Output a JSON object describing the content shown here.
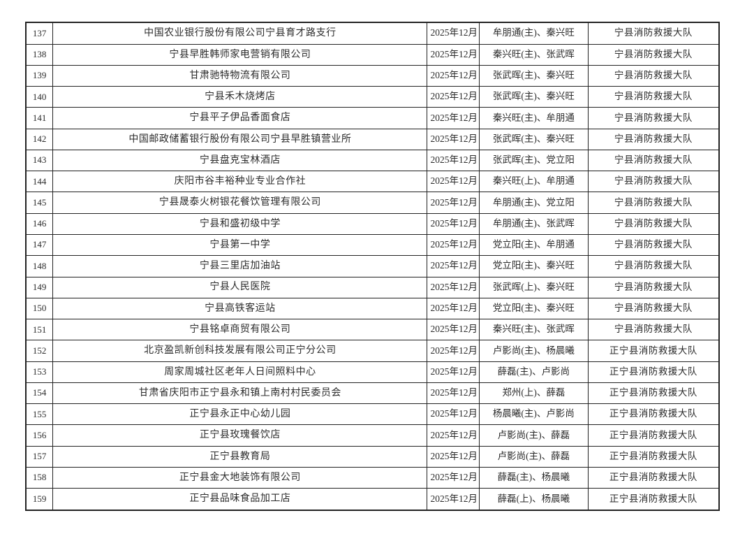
{
  "colors": {
    "background": "#ffffff",
    "border": "#222222",
    "text": "#2b2b2b"
  },
  "table": {
    "rows": [
      {
        "no": "137",
        "org": "中国农业银行股份有限公司宁县育才路支行",
        "date": "2025年12月",
        "inspectors": "牟朋通(主)、秦兴旺",
        "brigade": "宁县消防救援大队"
      },
      {
        "no": "138",
        "org": "宁县早胜韩师家电营销有限公司",
        "date": "2025年12月",
        "inspectors": "秦兴旺(主)、张武晖",
        "brigade": "宁县消防救援大队"
      },
      {
        "no": "139",
        "org": "甘肃驰特物流有限公司",
        "date": "2025年12月",
        "inspectors": "张武晖(主)、秦兴旺",
        "brigade": "宁县消防救援大队"
      },
      {
        "no": "140",
        "org": "宁县禾木烧烤店",
        "date": "2025年12月",
        "inspectors": "张武晖(主)、秦兴旺",
        "brigade": "宁县消防救援大队"
      },
      {
        "no": "141",
        "org": "宁县平子伊品香面食店",
        "date": "2025年12月",
        "inspectors": "秦兴旺(主)、牟朋通",
        "brigade": "宁县消防救援大队"
      },
      {
        "no": "142",
        "org": "中国邮政储蓄银行股份有限公司宁县早胜镇营业所",
        "date": "2025年12月",
        "inspectors": "张武晖(主)、秦兴旺",
        "brigade": "宁县消防救援大队"
      },
      {
        "no": "143",
        "org": "宁县盘克宝林酒店",
        "date": "2025年12月",
        "inspectors": "张武晖(主)、党立阳",
        "brigade": "宁县消防救援大队"
      },
      {
        "no": "144",
        "org": "庆阳市谷丰裕种业专业合作社",
        "date": "2025年12月",
        "inspectors": "秦兴旺(上)、牟朋通",
        "brigade": "宁县消防救援大队"
      },
      {
        "no": "145",
        "org": "宁县晟泰火树银花餐饮管理有限公司",
        "date": "2025年12月",
        "inspectors": "牟朋通(主)、党立阳",
        "brigade": "宁县消防救援大队"
      },
      {
        "no": "146",
        "org": "宁县和盛初级中学",
        "date": "2025年12月",
        "inspectors": "牟朋通(主)、张武晖",
        "brigade": "宁县消防救援大队"
      },
      {
        "no": "147",
        "org": "宁县第一中学",
        "date": "2025年12月",
        "inspectors": "党立阳(主)、牟朋通",
        "brigade": "宁县消防救援大队"
      },
      {
        "no": "148",
        "org": "宁县三里店加油站",
        "date": "2025年12月",
        "inspectors": "党立阳(主)、秦兴旺",
        "brigade": "宁县消防救援大队"
      },
      {
        "no": "149",
        "org": "宁县人民医院",
        "date": "2025年12月",
        "inspectors": "张武晖(上)、秦兴旺",
        "brigade": "宁县消防救援大队"
      },
      {
        "no": "150",
        "org": "宁县高铁客运站",
        "date": "2025年12月",
        "inspectors": "党立阳(主)、秦兴旺",
        "brigade": "宁县消防救援大队"
      },
      {
        "no": "151",
        "org": "宁县铭卓商贸有限公司",
        "date": "2025年12月",
        "inspectors": "秦兴旺(主)、张武晖",
        "brigade": "宁县消防救援大队"
      },
      {
        "no": "152",
        "org": "北京盈凯新创科技发展有限公司正宁分公司",
        "date": "2025年12月",
        "inspectors": "卢影尚(主)、杨晨曦",
        "brigade": "正宁县消防救援大队"
      },
      {
        "no": "153",
        "org": "周家周城社区老年人日间照料中心",
        "date": "2025年12月",
        "inspectors": "薛磊(主)、卢影尚",
        "brigade": "正宁县消防救援大队"
      },
      {
        "no": "154",
        "org": "甘肃省庆阳市正宁县永和镇上南村村民委员会",
        "date": "2025年12月",
        "inspectors": "郑州(上)、薛磊",
        "brigade": "正宁县消防救援大队"
      },
      {
        "no": "155",
        "org": "正宁县永正中心幼儿园",
        "date": "2025年12月",
        "inspectors": "杨晨曦(主)、卢影尚",
        "brigade": "正宁县消防救援大队"
      },
      {
        "no": "156",
        "org": "正宁县玫瑰餐饮店",
        "date": "2025年12月",
        "inspectors": "卢影尚(主)、薛磊",
        "brigade": "正宁县消防救援大队"
      },
      {
        "no": "157",
        "org": "正宁县教育局",
        "date": "2025年12月",
        "inspectors": "卢影尚(主)、薛磊",
        "brigade": "正宁县消防救援大队"
      },
      {
        "no": "158",
        "org": "正宁县金大地装饰有限公司",
        "date": "2025年12月",
        "inspectors": "薛磊(主)、杨晨曦",
        "brigade": "正宁县消防救援大队"
      },
      {
        "no": "159",
        "org": "正宁县品味食品加工店",
        "date": "2025年12月",
        "inspectors": "薛磊(上)、杨晨曦",
        "brigade": "正宁县消防救援大队"
      }
    ]
  }
}
